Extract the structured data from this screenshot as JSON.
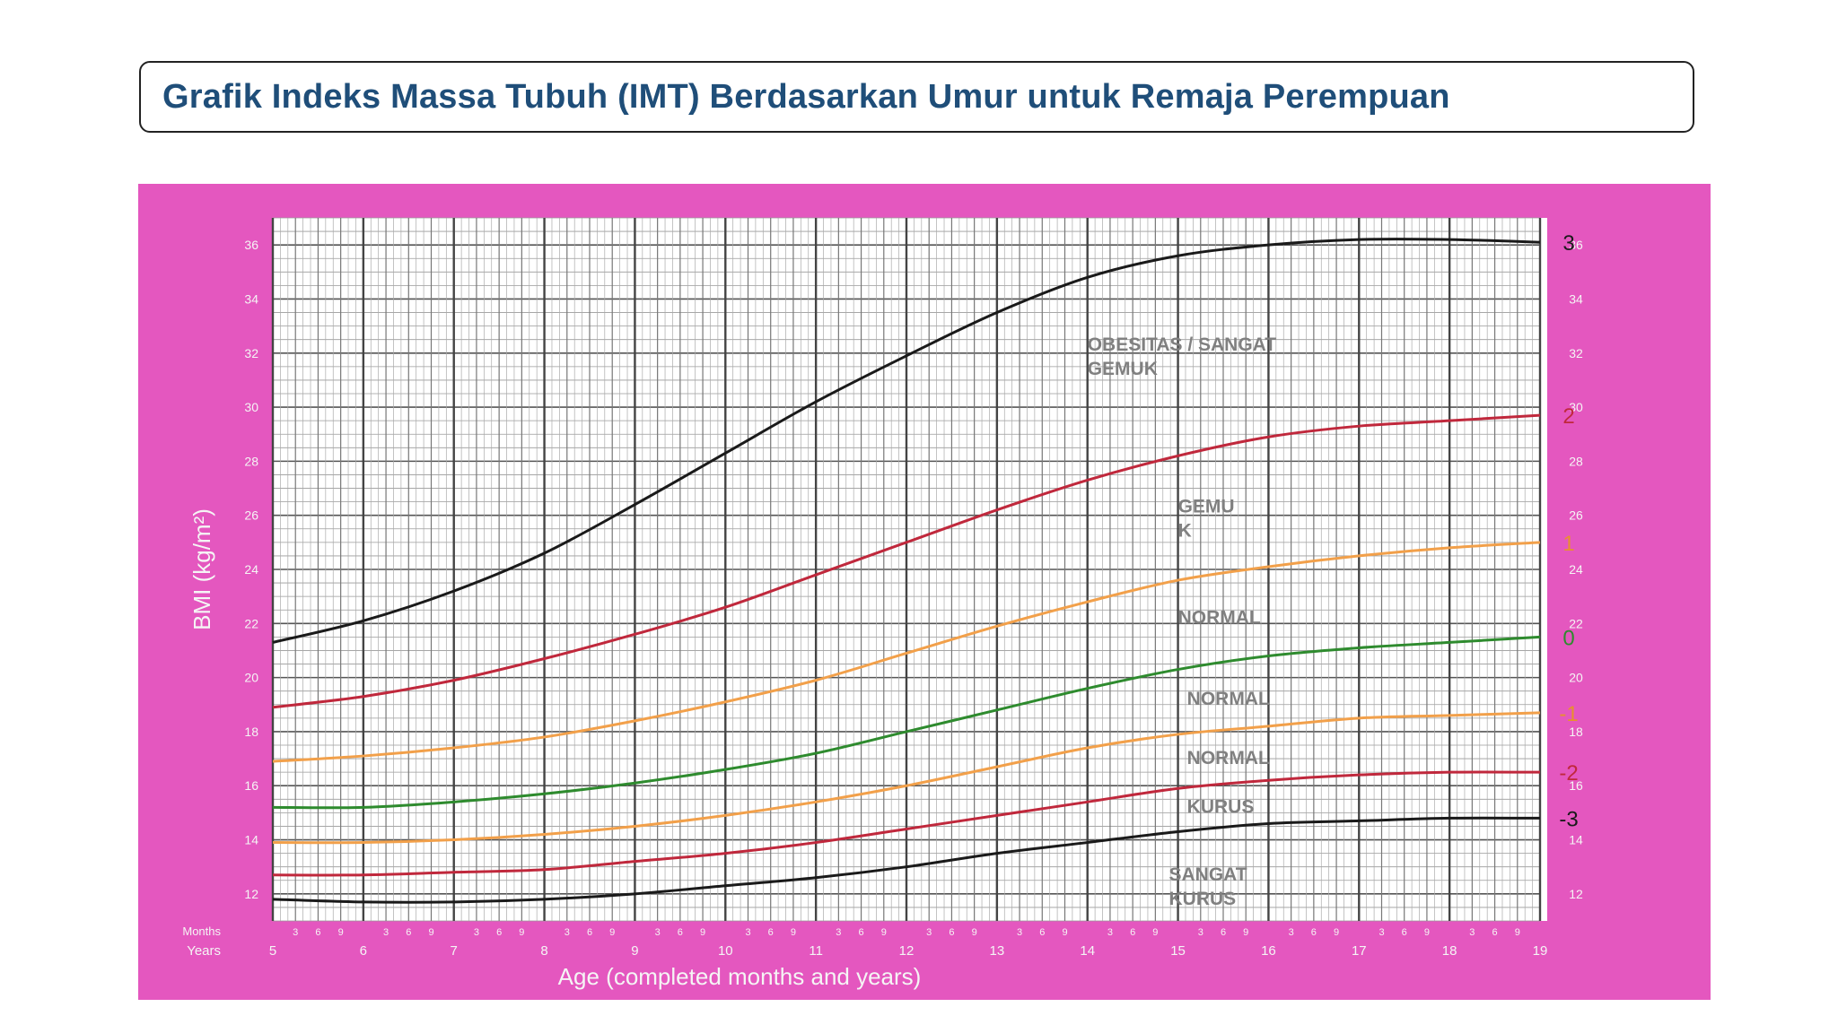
{
  "slide": {
    "title": "Grafik Indeks Massa Tubuh (IMT) Berdasarkan Umur untuk Remaja Perempuan"
  },
  "colors": {
    "frame": "#e457bf",
    "sd3": "#1a1a1a",
    "sd2": "#c0283c",
    "sd1": "#f2a04a",
    "sd0": "#2e8b2e",
    "label_gray": "#808080"
  },
  "chart_data": {
    "type": "line",
    "xlabel": "Age (completed months and years)",
    "ylabel": "BMI (kg/m²)",
    "row_label_months": "Months",
    "row_label_years": "Years",
    "xlim": [
      5,
      19
    ],
    "ylim": [
      11,
      37
    ],
    "years": [
      "5",
      "6",
      "7",
      "8",
      "9",
      "10",
      "11",
      "12",
      "13",
      "14",
      "15",
      "16",
      "17",
      "18",
      "19"
    ],
    "month_ticks": [
      "3",
      "6",
      "9"
    ],
    "yticks": [
      "12",
      "14",
      "16",
      "18",
      "20",
      "22",
      "24",
      "26",
      "28",
      "30",
      "32",
      "34",
      "36"
    ],
    "grid": true,
    "series": [
      {
        "name": "3",
        "color": "#1a1a1a",
        "x": [
          5,
          6,
          7,
          8,
          9,
          10,
          11,
          12,
          13,
          14,
          15,
          16,
          17,
          18,
          19
        ],
        "y": [
          21.3,
          22.1,
          23.2,
          24.6,
          26.4,
          28.3,
          30.2,
          31.9,
          33.5,
          34.8,
          35.6,
          36.0,
          36.2,
          36.2,
          36.1
        ]
      },
      {
        "name": "2",
        "color": "#c0283c",
        "x": [
          5,
          6,
          7,
          8,
          9,
          10,
          11,
          12,
          13,
          14,
          15,
          16,
          17,
          18,
          19
        ],
        "y": [
          18.9,
          19.3,
          19.9,
          20.7,
          21.6,
          22.6,
          23.8,
          25.0,
          26.2,
          27.3,
          28.2,
          28.9,
          29.3,
          29.5,
          29.7
        ]
      },
      {
        "name": "1",
        "color": "#f2a04a",
        "x": [
          5,
          6,
          7,
          8,
          9,
          10,
          11,
          12,
          13,
          14,
          15,
          16,
          17,
          18,
          19
        ],
        "y": [
          16.9,
          17.1,
          17.4,
          17.8,
          18.4,
          19.1,
          19.9,
          20.9,
          21.9,
          22.8,
          23.6,
          24.1,
          24.5,
          24.8,
          25.0
        ]
      },
      {
        "name": "0",
        "color": "#2e8b2e",
        "x": [
          5,
          6,
          7,
          8,
          9,
          10,
          11,
          12,
          13,
          14,
          15,
          16,
          17,
          18,
          19
        ],
        "y": [
          15.2,
          15.2,
          15.4,
          15.7,
          16.1,
          16.6,
          17.2,
          18.0,
          18.8,
          19.6,
          20.3,
          20.8,
          21.1,
          21.3,
          21.5
        ]
      },
      {
        "name": "-1",
        "color": "#f2a04a",
        "x": [
          5,
          6,
          7,
          8,
          9,
          10,
          11,
          12,
          13,
          14,
          15,
          16,
          17,
          18,
          19
        ],
        "y": [
          13.9,
          13.9,
          14.0,
          14.2,
          14.5,
          14.9,
          15.4,
          16.0,
          16.7,
          17.4,
          17.9,
          18.2,
          18.5,
          18.6,
          18.7
        ]
      },
      {
        "name": "-2",
        "color": "#c0283c",
        "x": [
          5,
          6,
          7,
          8,
          9,
          10,
          11,
          12,
          13,
          14,
          15,
          16,
          17,
          18,
          19
        ],
        "y": [
          12.7,
          12.7,
          12.8,
          12.9,
          13.2,
          13.5,
          13.9,
          14.4,
          14.9,
          15.4,
          15.9,
          16.2,
          16.4,
          16.5,
          16.5
        ]
      },
      {
        "name": "-3",
        "color": "#1a1a1a",
        "x": [
          5,
          6,
          7,
          8,
          9,
          10,
          11,
          12,
          13,
          14,
          15,
          16,
          17,
          18,
          19
        ],
        "y": [
          11.8,
          11.7,
          11.7,
          11.8,
          12.0,
          12.3,
          12.6,
          13.0,
          13.5,
          13.9,
          14.3,
          14.6,
          14.7,
          14.8,
          14.8
        ]
      }
    ],
    "annotations": [
      {
        "line1": "OBESITAS / SANGAT",
        "line2": "GEMUK",
        "x": 14.0,
        "y": 32.1
      },
      {
        "line1": "GEMU",
        "line2": "K",
        "x": 15.0,
        "y": 26.1
      },
      {
        "line1": "NORMAL",
        "line2": "",
        "x": 15.0,
        "y": 22.0
      },
      {
        "line1": "NORMAL",
        "line2": "",
        "x": 15.1,
        "y": 19.0
      },
      {
        "line1": "NORMAL",
        "line2": "",
        "x": 15.1,
        "y": 16.8
      },
      {
        "line1": "KURUS",
        "line2": "",
        "x": 15.1,
        "y": 15.0
      },
      {
        "line1": "SANGAT",
        "line2": "KURUS",
        "x": 14.9,
        "y": 12.5
      }
    ]
  }
}
